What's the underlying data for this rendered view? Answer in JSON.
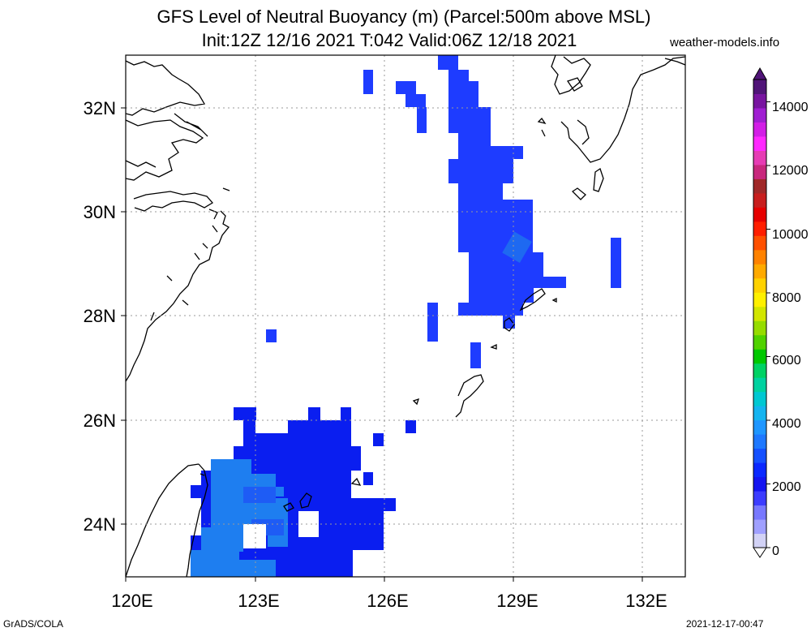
{
  "title_line1": "GFS Level of Neutral Buoyancy (m) (Parcel:500m above MSL)",
  "title_line2": "Init:12Z 12/16 2021 T:042 Valid:06Z 12/18 2021",
  "credit": "weather-models.info",
  "footer_left": "GrADS/COLA",
  "footer_right": "2021-12-17-00:47",
  "map": {
    "lon_range": [
      120,
      133
    ],
    "lat_range": [
      23,
      33
    ],
    "lon_ticks": [
      "120E",
      "123E",
      "126E",
      "129E",
      "132E"
    ],
    "lat_ticks": [
      "32N",
      "30N",
      "28N",
      "26N",
      "24N"
    ],
    "grid": "dotted",
    "field_colors": {
      "blue_2000": "#1e3cff",
      "deep_blue_1000": "#0a1ef0",
      "light_blue_3000": "#1e8cf0"
    }
  },
  "colorbar": {
    "labels": [
      "14000",
      "12000",
      "10000",
      "8000",
      "6000",
      "4000",
      "2000",
      "0"
    ],
    "colors": [
      "#d2d2f5",
      "#a0a0ff",
      "#7878ff",
      "#3c3cff",
      "#1414f0",
      "#0a28ff",
      "#1450ff",
      "#1e78ff",
      "#1e96ff",
      "#14b4f0",
      "#00c8d2",
      "#00d2a0",
      "#00d264",
      "#00c800",
      "#50d200",
      "#96dc00",
      "#d2e600",
      "#fff000",
      "#ffd200",
      "#ffaa00",
      "#ff8200",
      "#ff5000",
      "#ff1e00",
      "#e60000",
      "#c81e1e",
      "#a02828",
      "#c8287d",
      "#e63cb4",
      "#ff28ff",
      "#d21ee6",
      "#a01ed2",
      "#7814a0",
      "#501478"
    ]
  }
}
